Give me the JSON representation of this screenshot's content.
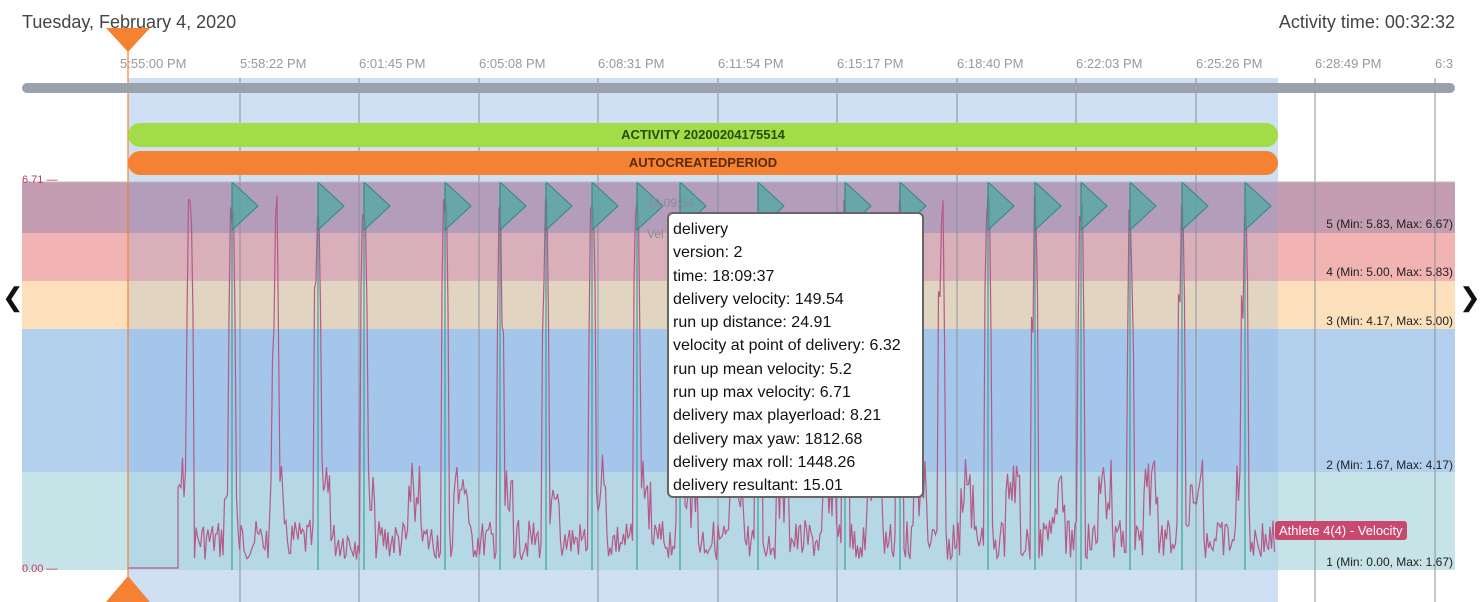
{
  "header": {
    "date": "Tuesday, February 4, 2020",
    "activity_time": "Activity time: 00:32:32"
  },
  "timeline": {
    "ticks": [
      "5:55:00 PM",
      "5:58:22 PM",
      "6:01:45 PM",
      "6:05:08 PM",
      "6:08:31 PM",
      "6:11:54 PM",
      "6:15:17 PM",
      "6:18:40 PM",
      "6:22:03 PM",
      "6:25:26 PM",
      "6:28:49 PM",
      "6:3"
    ]
  },
  "bars": {
    "activity": "ACTIVITY 20200204175514",
    "period": "AUTOCREATEDPERIOD"
  },
  "axis": {
    "max_label": "6.71 —",
    "min_label": "0.00 —"
  },
  "zones": [
    {
      "label": "5 (Min: 5.83, Max: 6.67)",
      "color": "#c49db2"
    },
    {
      "label": "4 (Min: 5.00, Max: 5.83)",
      "color": "#f2b3b3"
    },
    {
      "label": "3 (Min: 4.17, Max: 5.00)",
      "color": "#fce0bb"
    },
    {
      "label": "2 (Min: 1.67, Max: 4.17)",
      "color": "#b2cfee"
    },
    {
      "label": "1 (Min: 0.00, Max: 1.67)",
      "color": "#c6e3e8"
    }
  ],
  "ghost": {
    "time": "18:09:54",
    "prefix": "Vel"
  },
  "tooltip": {
    "lines": [
      "delivery",
      "version: 2",
      "time: 18:09:37",
      "delivery velocity: 149.54",
      "run up distance: 24.91",
      "velocity at point of delivery: 6.32",
      "run up mean velocity: 5.2",
      "run up max velocity: 6.71",
      "delivery max playerload: 8.21",
      "delivery max yaw: 1812.68",
      "delivery max roll: 1448.26",
      "delivery resultant: 15.01"
    ]
  },
  "series": {
    "label": "Athlete 4(4) - Velocity",
    "color": "#c9496e"
  },
  "nav": {
    "prev": "❮",
    "next": "❯"
  },
  "colors": {
    "selection": "#a9c8ec",
    "flag": "#3aa39a",
    "cursor": "#f58232",
    "scrollbar": "#9aa1ab"
  },
  "chart_data": {
    "type": "line",
    "y_range": [
      0,
      6.71
    ],
    "delivery_markers": 22
  }
}
